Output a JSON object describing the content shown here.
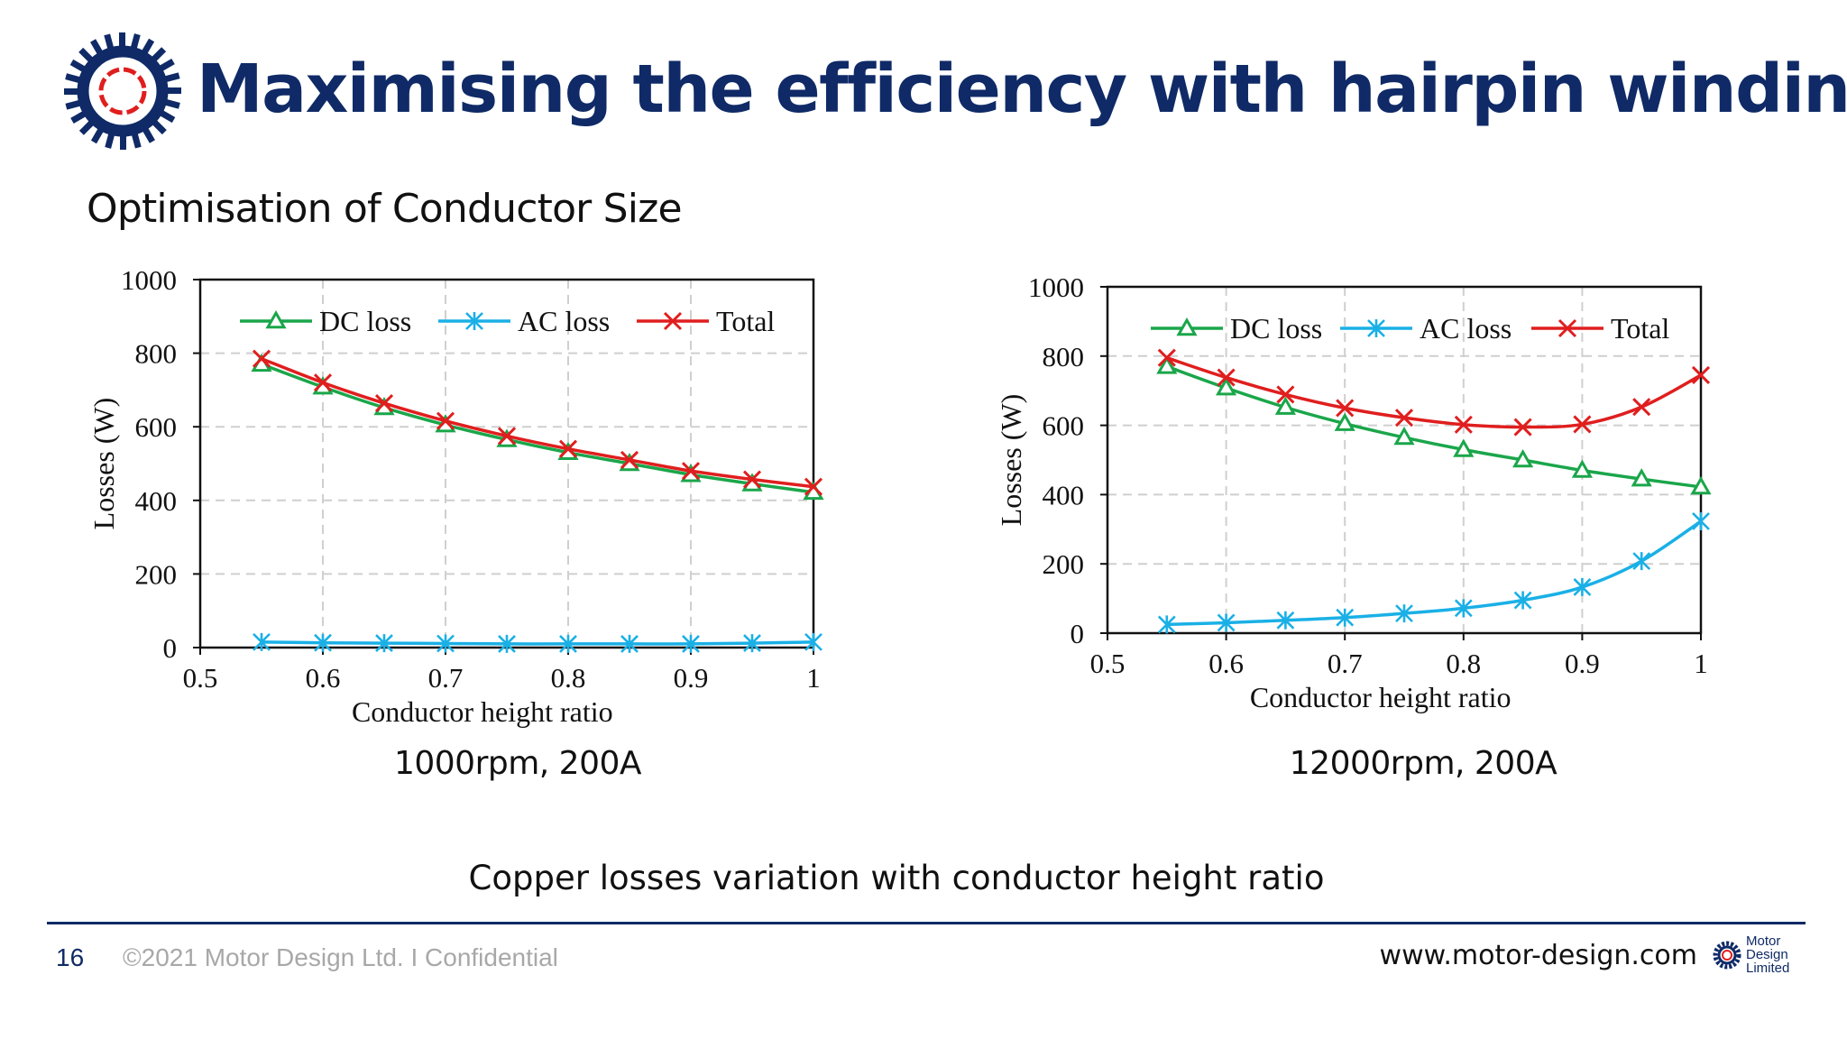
{
  "header": {
    "title": "Maximising the efficiency with hairpin winding",
    "subtitle": "Optimisation of Conductor Size",
    "logo_icon": "motor-stator-icon"
  },
  "colors": {
    "brand_navy": "#0f2a66",
    "dc_loss": "#1aa64a",
    "ac_loss": "#1ab0e6",
    "total": "#e01e1e"
  },
  "chart_data": [
    {
      "type": "line",
      "x": [
        0.55,
        0.6,
        0.65,
        0.7,
        0.75,
        0.8,
        0.85,
        0.9,
        0.95,
        1.0
      ],
      "series": [
        {
          "name": "DC loss",
          "marker": "triangle",
          "values": [
            770,
            708,
            652,
            605,
            565,
            530,
            500,
            470,
            445,
            422
          ]
        },
        {
          "name": "AC loss",
          "marker": "asterisk",
          "values": [
            15,
            13,
            12,
            11,
            10,
            10,
            10,
            10,
            12,
            15
          ]
        },
        {
          "name": "Total",
          "marker": "x",
          "values": [
            785,
            720,
            664,
            616,
            575,
            540,
            510,
            480,
            457,
            437
          ]
        }
      ],
      "xlabel": "Conductor height ratio",
      "ylabel": "Losses (W)",
      "xlim": [
        0.5,
        1.0
      ],
      "ylim": [
        0,
        1000
      ],
      "xticks": [
        "0.5",
        "0.6",
        "0.7",
        "0.8",
        "0.9",
        "1"
      ],
      "yticks": [
        "0",
        "200",
        "400",
        "600",
        "800",
        "1000"
      ],
      "grid": true,
      "legend": "top",
      "condition": "1000rpm, 200A"
    },
    {
      "type": "line",
      "x": [
        0.55,
        0.6,
        0.65,
        0.7,
        0.75,
        0.8,
        0.85,
        0.9,
        0.95,
        1.0
      ],
      "series": [
        {
          "name": "DC loss",
          "marker": "triangle",
          "values": [
            770,
            708,
            652,
            605,
            565,
            530,
            500,
            470,
            445,
            422
          ]
        },
        {
          "name": "AC loss",
          "marker": "asterisk",
          "values": [
            25,
            30,
            37,
            45,
            57,
            72,
            95,
            133,
            208,
            323
          ]
        },
        {
          "name": "Total",
          "marker": "x",
          "values": [
            795,
            738,
            689,
            650,
            622,
            602,
            595,
            603,
            653,
            745
          ]
        }
      ],
      "xlabel": "Conductor height ratio",
      "ylabel": "Losses (W)",
      "xlim": [
        0.5,
        1.0
      ],
      "ylim": [
        0,
        1000
      ],
      "xticks": [
        "0.5",
        "0.6",
        "0.7",
        "0.8",
        "0.9",
        "1"
      ],
      "yticks": [
        "0",
        "200",
        "400",
        "600",
        "800",
        "1000"
      ],
      "grid": true,
      "legend": "top",
      "condition": "12000rpm, 200A"
    }
  ],
  "caption": "Copper losses variation with conductor height ratio",
  "footer": {
    "page_number": "16",
    "copyright": "©2021 Motor Design Ltd. I Confidential",
    "website": "www.motor-design.com",
    "logo_lines": [
      "Motor",
      "Design",
      "Limited"
    ]
  }
}
